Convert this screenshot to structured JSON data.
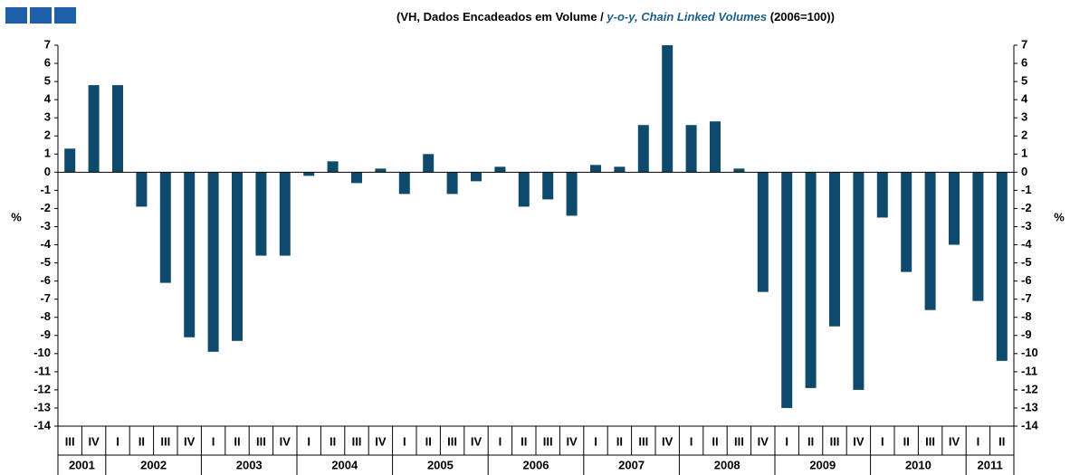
{
  "chart_data": {
    "type": "bar",
    "title_parts": [
      "(VH, Dados Encadeados em Volume / ",
      "y-o-y, Chain Linked Volumes",
      " (2006=100))"
    ],
    "ylabel": "%",
    "y2label": "%",
    "color": "#0d4a6b",
    "ylim": [
      -14,
      7
    ],
    "yticks": [
      -14,
      -13,
      -12,
      -11,
      -10,
      -9,
      -8,
      -7,
      -6,
      -5,
      -4,
      -3,
      -2,
      -1,
      0,
      1,
      2,
      3,
      4,
      5,
      6,
      7
    ],
    "y2lim": [
      -14,
      7
    ],
    "y2ticks": [
      -14,
      -13,
      -12,
      -11,
      -10,
      -9,
      -8,
      -7,
      -6,
      -5,
      -4,
      -3,
      -2,
      -1,
      0,
      1,
      2,
      3,
      4,
      5,
      6,
      7
    ],
    "groups": [
      {
        "label": "2001",
        "categories": [
          "III",
          "IV"
        ],
        "values": [
          1.3,
          4.8
        ]
      },
      {
        "label": "2002",
        "categories": [
          "I",
          "II",
          "III",
          "IV"
        ],
        "values": [
          4.8,
          -1.9,
          -6.1,
          -9.1
        ]
      },
      {
        "label": "2003",
        "categories": [
          "I",
          "II",
          "III",
          "IV"
        ],
        "values": [
          -9.9,
          -9.3,
          -4.6,
          -4.6
        ]
      },
      {
        "label": "2004",
        "categories": [
          "I",
          "II",
          "III",
          "IV"
        ],
        "values": [
          -0.2,
          0.6,
          -0.6,
          0.2
        ]
      },
      {
        "label": "2005",
        "categories": [
          "I",
          "II",
          "III",
          "IV"
        ],
        "values": [
          -1.2,
          1.0,
          -1.2,
          -0.5
        ]
      },
      {
        "label": "2006",
        "categories": [
          "I",
          "II",
          "III",
          "IV"
        ],
        "values": [
          0.3,
          -1.9,
          -1.5,
          -2.4
        ]
      },
      {
        "label": "2007",
        "categories": [
          "I",
          "II",
          "III",
          "IV"
        ],
        "values": [
          0.4,
          0.3,
          2.6,
          7.0
        ]
      },
      {
        "label": "2008",
        "categories": [
          "I",
          "II",
          "III",
          "IV"
        ],
        "values": [
          2.6,
          2.8,
          0.2,
          -6.6
        ]
      },
      {
        "label": "2009",
        "categories": [
          "I",
          "II",
          "III",
          "IV"
        ],
        "values": [
          -13.0,
          -11.9,
          -8.5,
          -12.0
        ]
      },
      {
        "label": "2010",
        "categories": [
          "I",
          "II",
          "III",
          "IV"
        ],
        "values": [
          -2.5,
          -5.5,
          -7.6,
          -4.0
        ]
      },
      {
        "label": "2011",
        "categories": [
          "I",
          "II"
        ],
        "values": [
          -7.1,
          -10.4
        ]
      }
    ]
  }
}
